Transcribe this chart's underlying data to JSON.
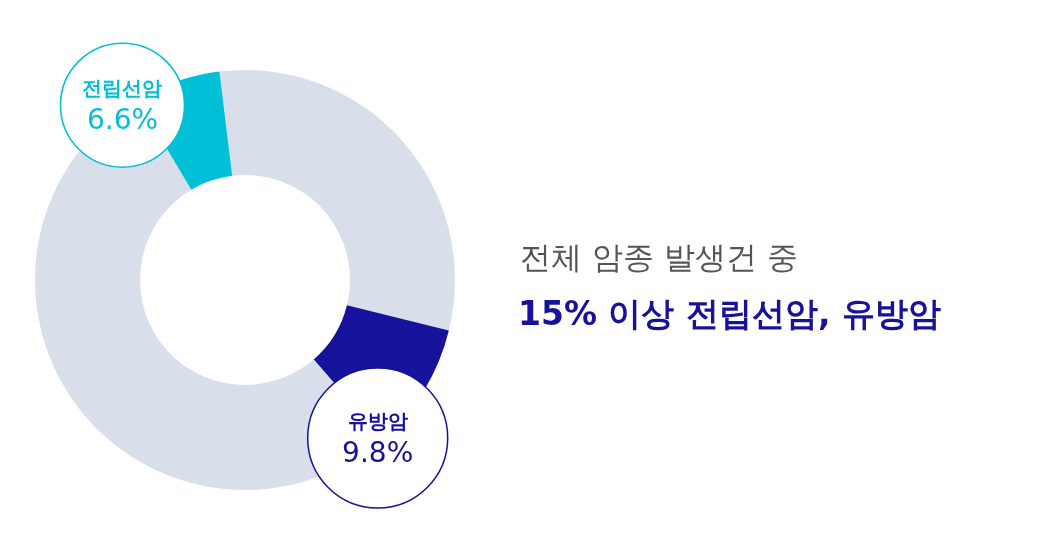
{
  "chart_data": {
    "type": "donut",
    "subtitle": "전체 암종 발생건 중",
    "title": "15% 이상 전립선암, 유방암",
    "categories": [
      null,
      "유방암",
      null,
      "전립선암"
    ],
    "values": [
      30.8,
      9.8,
      52.8,
      6.6
    ],
    "value_labels": [
      null,
      "9.8%",
      null,
      "6.6%"
    ],
    "colors": [
      "#d9dfea",
      "#16129c",
      "#d9dfea",
      "#00bfd6"
    ]
  }
}
